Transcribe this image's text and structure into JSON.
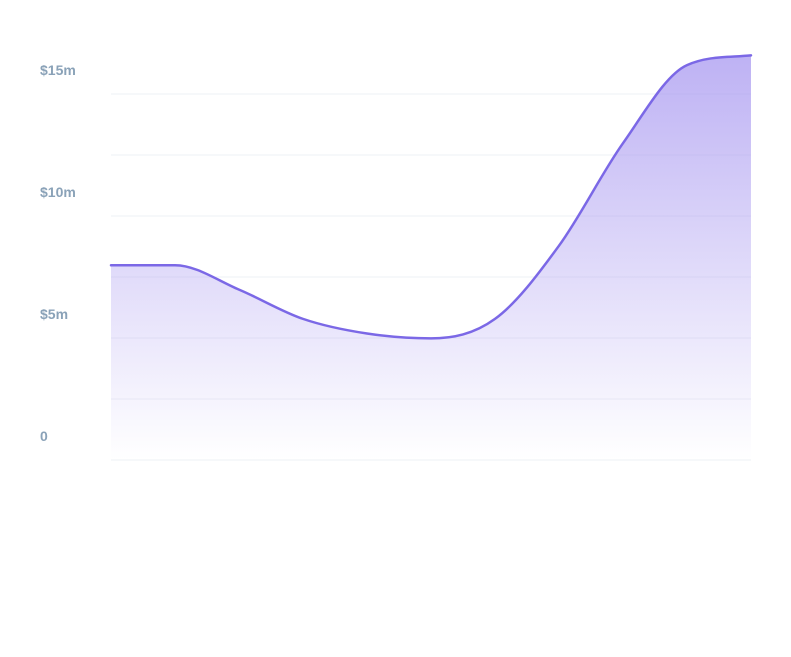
{
  "chart_data": {
    "type": "area",
    "title": "",
    "xlabel": "",
    "ylabel": "",
    "y_unit": "$m",
    "ylim": [
      0,
      15
    ],
    "y_ticks": [
      {
        "value": 15,
        "label": "$15m"
      },
      {
        "value": 10,
        "label": "$10m"
      },
      {
        "value": 5,
        "label": "$5m"
      },
      {
        "value": 0,
        "label": "0"
      }
    ],
    "grid": true,
    "legend": "none",
    "series": [
      {
        "x": [
          0,
          1,
          2,
          3,
          4,
          5,
          6,
          7,
          8,
          9,
          10
        ],
        "values": [
          7.0,
          7.0,
          6.0,
          4.8,
          4.2,
          4.0,
          4.8,
          7.8,
          12.0,
          15.2,
          15.6
        ]
      }
    ],
    "colors": {
      "line": "#7b68e6",
      "fill_top": "#a898f0",
      "tick_label": "#8aa2b8",
      "grid": "#eef1f5"
    }
  }
}
